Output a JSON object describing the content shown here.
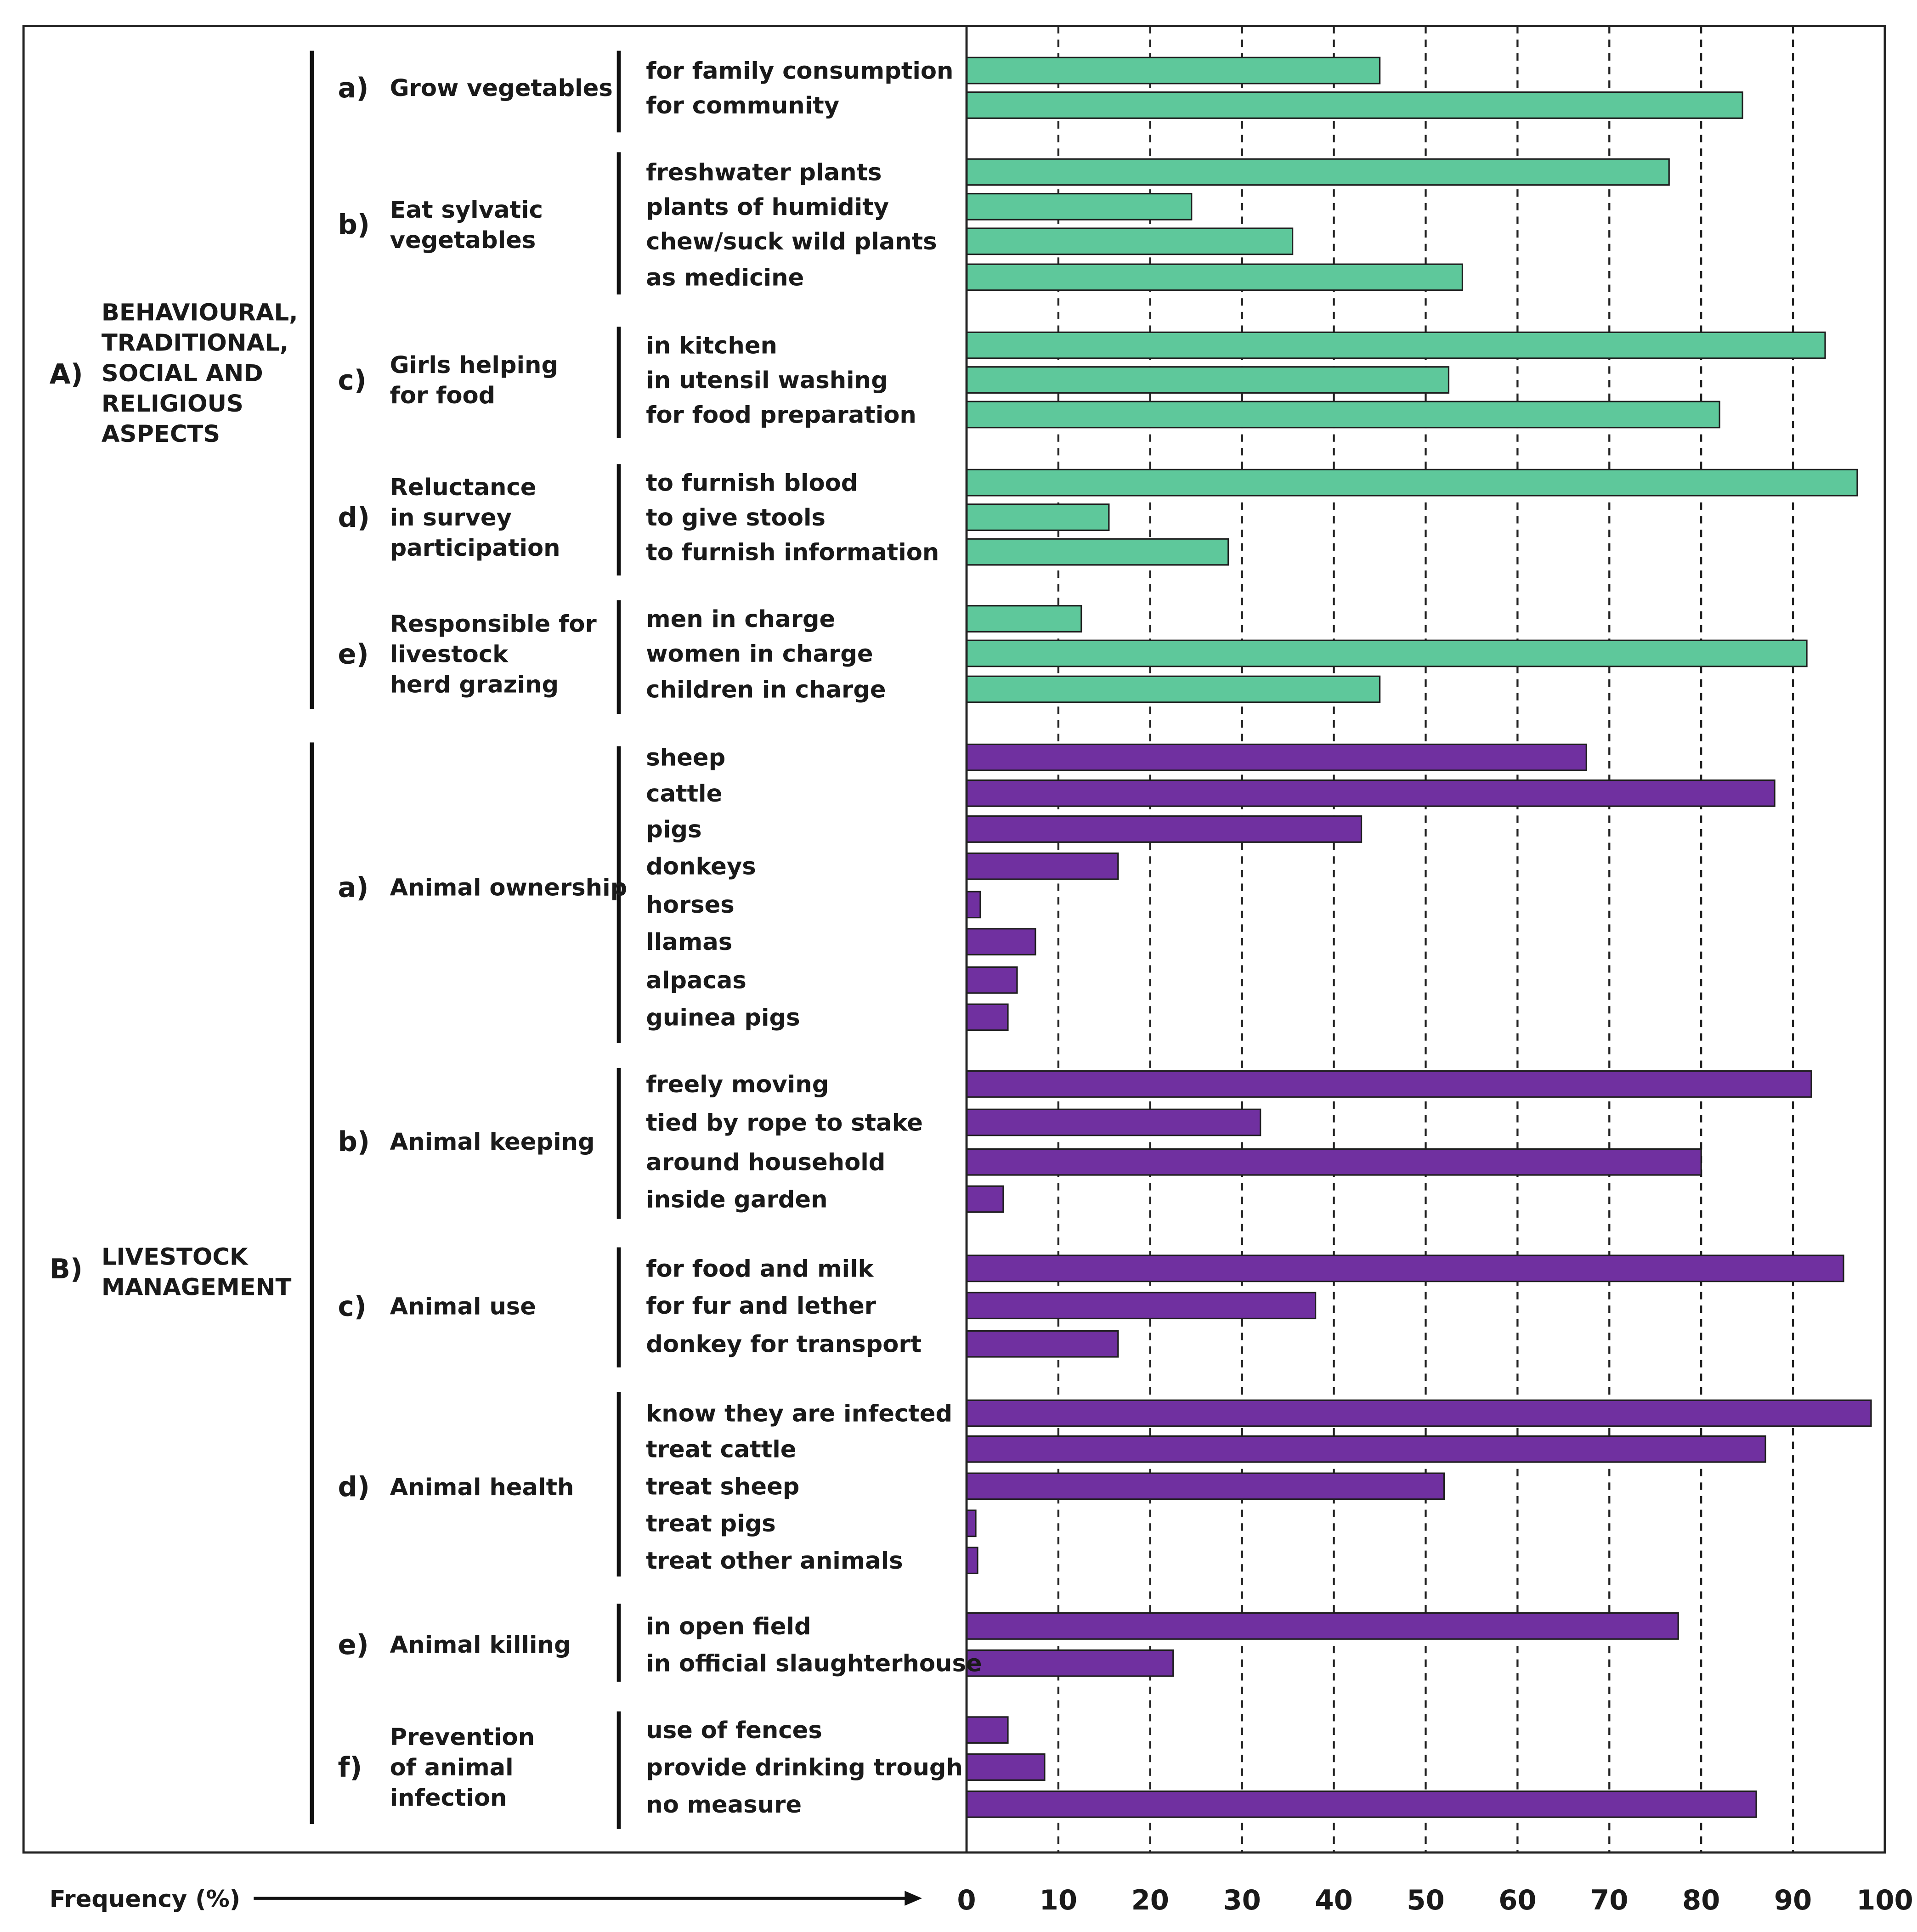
{
  "chart_data": {
    "type": "bar",
    "orientation": "horizontal",
    "xlabel": "Frequency (%)",
    "xlim": [
      0,
      100
    ],
    "xticks": [
      0,
      10,
      20,
      30,
      40,
      50,
      60,
      70,
      80,
      90,
      100
    ],
    "grid": "vertical dashed",
    "colors": {
      "A": "#5ec89b",
      "B": "#7030a0"
    },
    "sections": [
      {
        "letter": "A)",
        "title": [
          "BEHAVIOURAL,",
          "TRADITIONAL,",
          "SOCIAL AND",
          "RELIGIOUS",
          "ASPECTS"
        ],
        "groups": [
          {
            "letter": "a)",
            "title": [
              "Grow vegetables"
            ],
            "items": [
              {
                "label": "for family consumption",
                "value": 45
              },
              {
                "label": "for community",
                "value": 84.5
              }
            ]
          },
          {
            "letter": "b)",
            "title": [
              "Eat sylvatic",
              "vegetables"
            ],
            "items": [
              {
                "label": "freshwater plants",
                "value": 76.5
              },
              {
                "label": "plants of humidity",
                "value": 24.5
              },
              {
                "label": "chew/suck wild plants",
                "value": 35.5
              },
              {
                "label": "as medicine",
                "value": 54
              }
            ]
          },
          {
            "letter": "c)",
            "title": [
              "Girls helping",
              "for food"
            ],
            "items": [
              {
                "label": "in kitchen",
                "value": 93.5
              },
              {
                "label": "in utensil washing",
                "value": 52.5
              },
              {
                "label": "for food preparation",
                "value": 82
              }
            ]
          },
          {
            "letter": "d)",
            "title": [
              "Reluctance",
              "in survey",
              "participation"
            ],
            "items": [
              {
                "label": "to furnish blood",
                "value": 97
              },
              {
                "label": "to give stools",
                "value": 15.5
              },
              {
                "label": "to furnish information",
                "value": 28.5
              }
            ]
          },
          {
            "letter": "e)",
            "title": [
              "Responsible for",
              "livestock",
              "herd grazing"
            ],
            "items": [
              {
                "label": "men in charge",
                "value": 12.5
              },
              {
                "label": "women in charge",
                "value": 91.5
              },
              {
                "label": "children in charge",
                "value": 45
              }
            ]
          }
        ]
      },
      {
        "letter": "B)",
        "title": [
          "LIVESTOCK",
          "MANAGEMENT"
        ],
        "groups": [
          {
            "letter": "a)",
            "title": [
              "Animal ownership"
            ],
            "items": [
              {
                "label": "sheep",
                "value": 67.5
              },
              {
                "label": "cattle",
                "value": 88
              },
              {
                "label": "pigs",
                "value": 43
              },
              {
                "label": "donkeys",
                "value": 16.5
              },
              {
                "label": "horses",
                "value": 1.5
              },
              {
                "label": "llamas",
                "value": 7.5
              },
              {
                "label": "alpacas",
                "value": 5.5
              },
              {
                "label": "guinea pigs",
                "value": 4.5
              }
            ]
          },
          {
            "letter": "b)",
            "title": [
              "Animal keeping"
            ],
            "items": [
              {
                "label": "freely moving",
                "value": 92
              },
              {
                "label": "tied by rope to stake",
                "value": 32
              },
              {
                "label": "around household",
                "value": 80
              },
              {
                "label": "inside garden",
                "value": 4
              }
            ]
          },
          {
            "letter": "c)",
            "title": [
              "Animal use"
            ],
            "items": [
              {
                "label": "for food and milk",
                "value": 95.5
              },
              {
                "label": "for fur and lether",
                "value": 38
              },
              {
                "label": "donkey for transport",
                "value": 16.5
              }
            ]
          },
          {
            "letter": "d)",
            "title": [
              "Animal health"
            ],
            "items": [
              {
                "label": "know they are infected",
                "value": 98.5
              },
              {
                "label": "treat cattle",
                "value": 87
              },
              {
                "label": "treat sheep",
                "value": 52
              },
              {
                "label": "treat pigs",
                "value": 1
              },
              {
                "label": "treat other animals",
                "value": 1.2
              }
            ]
          },
          {
            "letter": "e)",
            "title": [
              "Animal killing"
            ],
            "items": [
              {
                "label": "in open field",
                "value": 77.5
              },
              {
                "label": "in official slaughterhouse",
                "value": 22.5
              }
            ]
          },
          {
            "letter": "f)",
            "title": [
              "Prevention",
              "of animal",
              "infection"
            ],
            "items": [
              {
                "label": "use of fences",
                "value": 4.5
              },
              {
                "label": "provide drinking trough",
                "value": 8.5
              },
              {
                "label": "no measure",
                "value": 86
              }
            ]
          }
        ]
      }
    ]
  }
}
